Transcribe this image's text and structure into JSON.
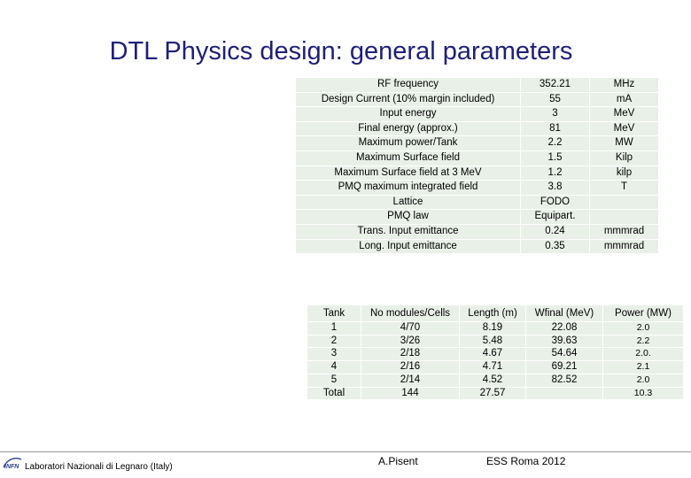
{
  "title": "DTL Physics design: general parameters",
  "parameters": [
    {
      "name": "RF frequency",
      "value": "352.21",
      "unit": "MHz"
    },
    {
      "name": "Design Current (10% margin included)",
      "value": "55",
      "unit": "mA"
    },
    {
      "name": "Input energy",
      "value": "3",
      "unit": "MeV"
    },
    {
      "name": "Final energy (approx.)",
      "value": "81",
      "unit": "MeV"
    },
    {
      "name": "Maximum power/Tank",
      "value": "2.2",
      "unit": "MW"
    },
    {
      "name": "Maximum Surface field",
      "value": "1.5",
      "unit": "Kilp"
    },
    {
      "name": "Maximum Surface field at 3 MeV",
      "value": "1.2",
      "unit": "kilp"
    },
    {
      "name": "PMQ maximum integrated field",
      "value": "3.8",
      "unit": "T"
    },
    {
      "name": "Lattice",
      "value": "FODO",
      "unit": ""
    },
    {
      "name": "PMQ law",
      "value": "Equipart.",
      "unit": ""
    },
    {
      "name": "Trans. Input emittance",
      "value": "0.24",
      "unit": "mmmrad"
    },
    {
      "name": "Long. Input emittance",
      "value": "0.35",
      "unit": "mmmrad"
    }
  ],
  "tanks": {
    "headers": [
      "Tank",
      "No modules/Cells",
      "Length (m)",
      "Wfinal (MeV)",
      "Power (MW)"
    ],
    "rows": [
      [
        "1",
        "4/70",
        "8.19",
        "22.08",
        "2.0"
      ],
      [
        "2",
        "3/26",
        "5.48",
        "39.63",
        "2.2"
      ],
      [
        "3",
        "2/18",
        "4.67",
        "54.64",
        "2.0."
      ],
      [
        "4",
        "2/16",
        "4.71",
        "69.21",
        "2.1"
      ],
      [
        "5",
        "2/14",
        "4.52",
        "82.52",
        "2.0"
      ],
      [
        "Total",
        "144",
        "27.57",
        "",
        "10.3"
      ]
    ]
  },
  "footer": {
    "logo_text": "INFN",
    "lab": "Laboratori Nazionali di Legnaro (Italy)",
    "author": "A.Pisent",
    "event": "ESS Roma  2012"
  }
}
